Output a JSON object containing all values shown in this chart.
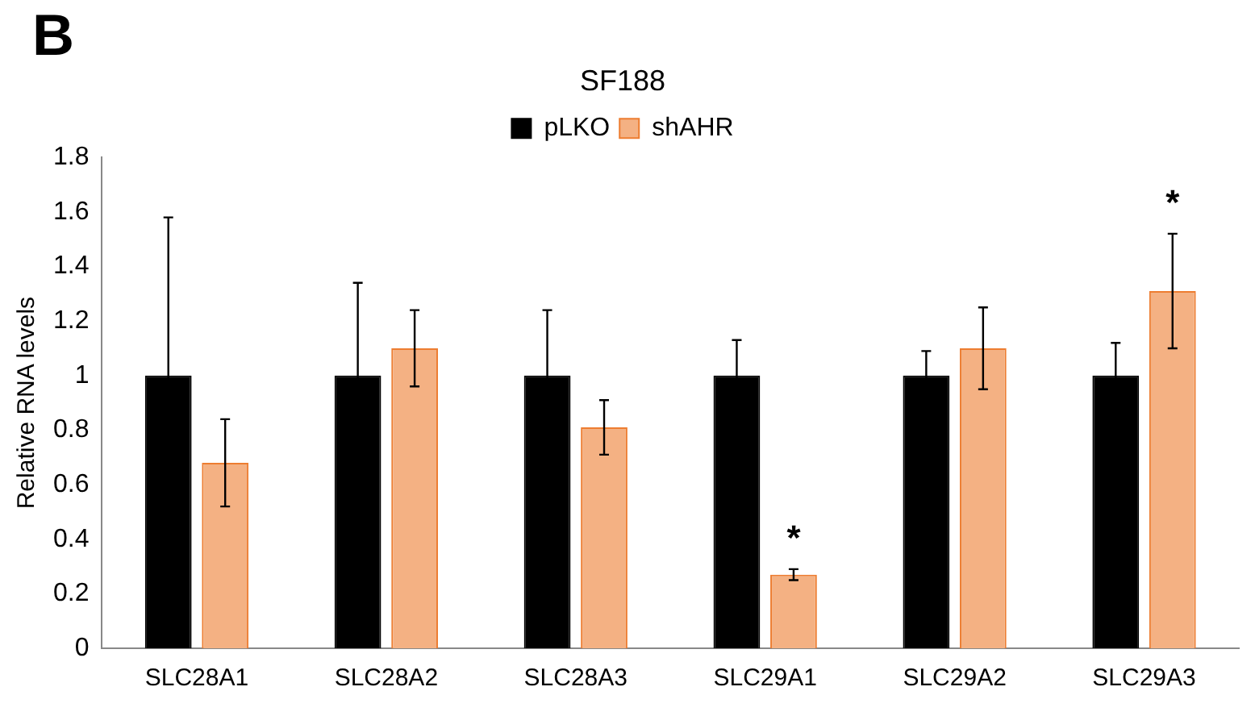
{
  "chart_data": {
    "type": "bar",
    "title": "SF188",
    "ylabel": "Relative RNA levels",
    "categories": [
      "SLC28A1",
      "SLC28A2",
      "SLC28A3",
      "SLC29A1",
      "SLC29A2",
      "SLC29A3"
    ],
    "series": [
      {
        "name": "pLKO",
        "color": "#000000",
        "values": [
          1,
          1,
          1,
          1,
          1,
          1
        ],
        "errors": [
          0.58,
          0.34,
          0.24,
          0.13,
          0.09,
          0.12
        ]
      },
      {
        "name": "shAHR",
        "color": "#f4b183",
        "values": [
          0.68,
          1.1,
          0.81,
          0.27,
          1.1,
          1.31
        ],
        "errors": [
          0.16,
          0.14,
          0.1,
          0.02,
          0.15,
          0.21
        ]
      }
    ],
    "ylim": [
      0,
      1.8
    ],
    "yticks": [
      0,
      0.2,
      0.4,
      0.6,
      0.8,
      1,
      1.2,
      1.4,
      1.6,
      1.8
    ],
    "grid": false,
    "legend": "top",
    "annotations": [
      "B",
      {
        "text": "*",
        "x": "SLC29A1",
        "y": 0.27
      },
      {
        "text": "*",
        "x": "SLC29A3",
        "y": 1.31
      }
    ]
  }
}
